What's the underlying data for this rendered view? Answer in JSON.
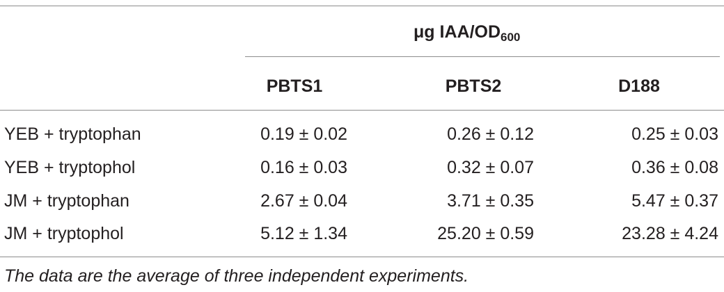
{
  "table": {
    "group_header_prefix": "μg IAA/OD",
    "group_header_sub": "600",
    "columns": [
      "PBTS1",
      "PBTS2",
      "D188"
    ],
    "rows": [
      {
        "label": "YEB + tryptophan",
        "values": [
          "0.19 ± 0.02",
          "0.26 ± 0.12",
          "0.25 ± 0.03"
        ]
      },
      {
        "label": "YEB + tryptophol",
        "values": [
          "0.16 ± 0.03",
          "0.32 ± 0.07",
          "0.36 ± 0.08"
        ]
      },
      {
        "label": "JM + tryptophan",
        "values": [
          "2.67 ± 0.04",
          "3.71 ± 0.35",
          "5.47 ± 0.37"
        ]
      },
      {
        "label": "JM + tryptophol",
        "values": [
          "5.12 ± 1.34",
          "25.20 ± 0.59",
          "23.28 ± 4.24"
        ]
      }
    ],
    "footnote": "The data are the average of three independent experiments."
  }
}
